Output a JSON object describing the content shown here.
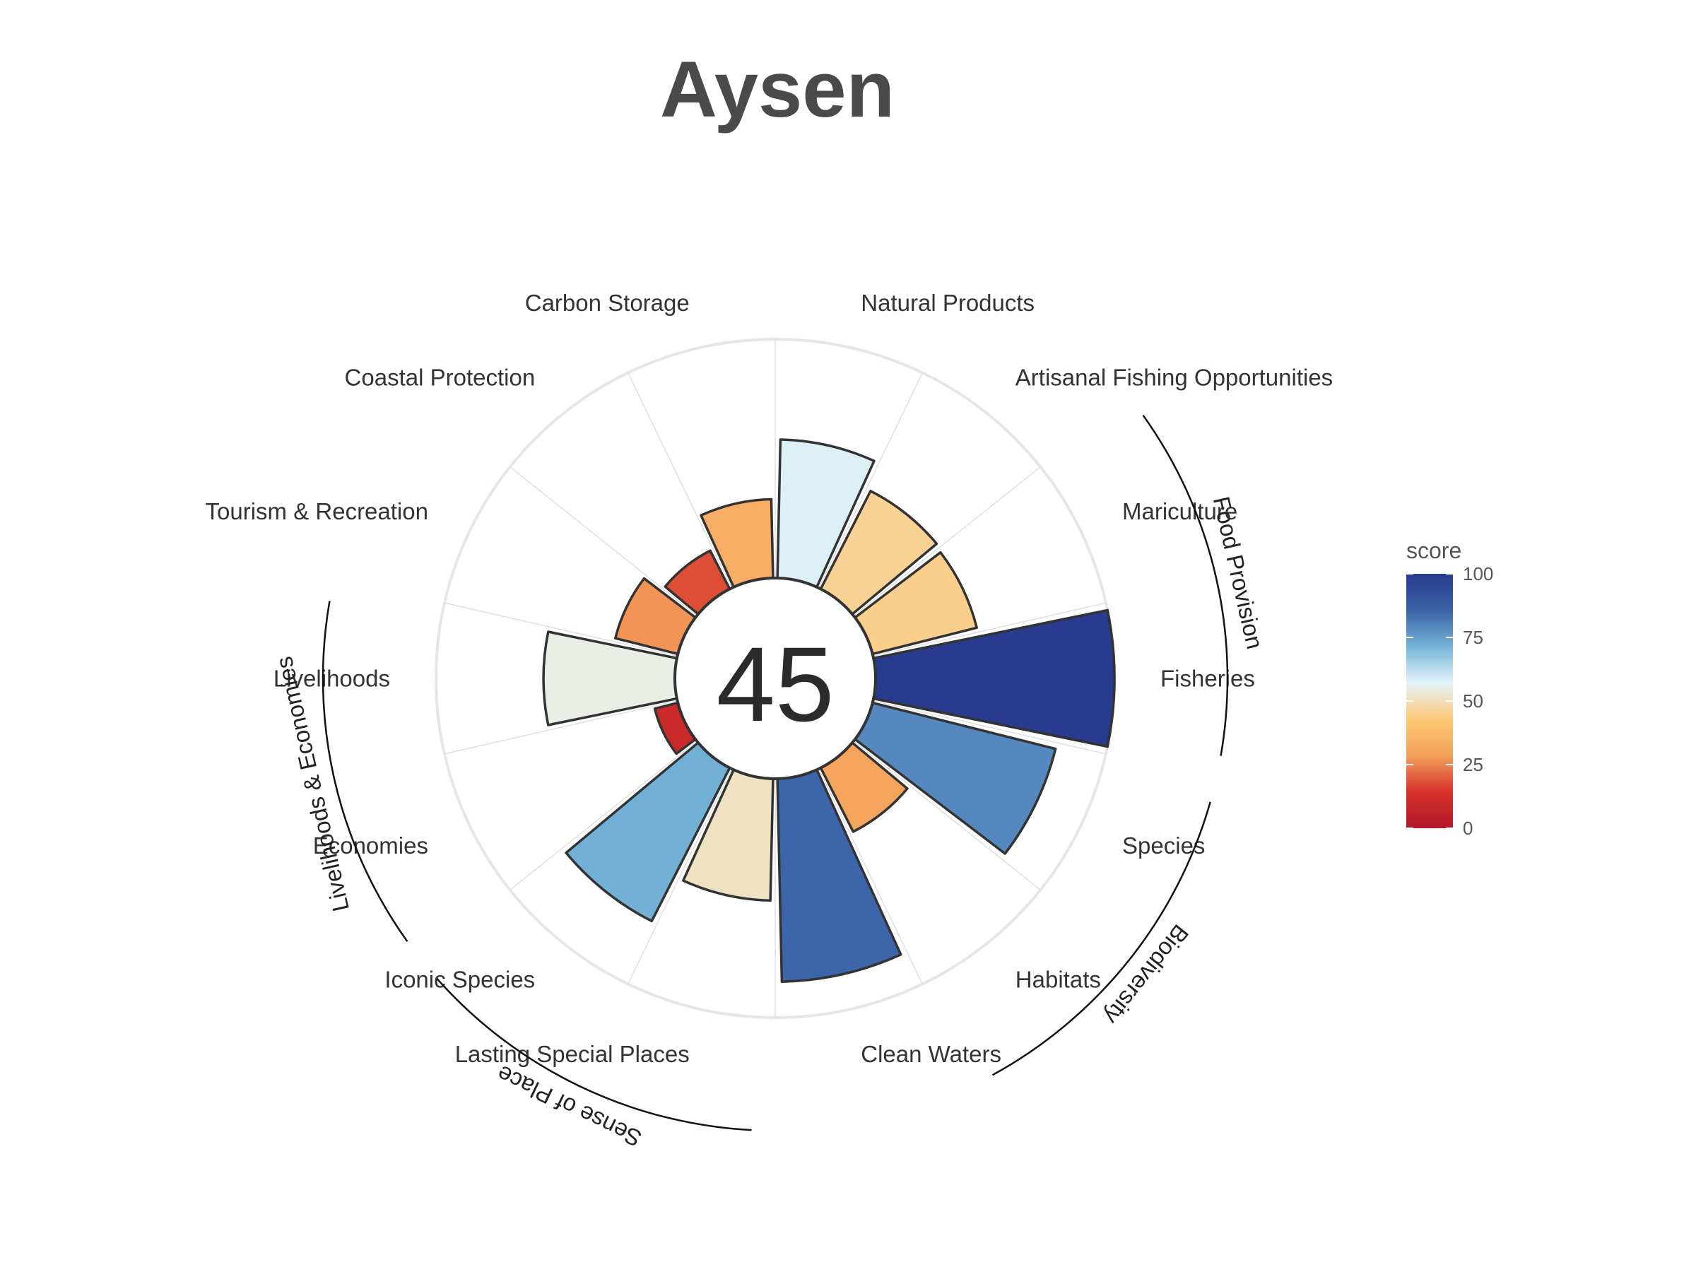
{
  "chart_data": {
    "type": "flower",
    "title": "Aysen",
    "center_value": "45",
    "petals": [
      {
        "label": "Fisheries",
        "value": 100
      },
      {
        "label": "Mariculture",
        "value": 45
      },
      {
        "label": "Artisanal Fishing Opportunities",
        "value": 46
      },
      {
        "label": "Natural Products",
        "value": 58
      },
      {
        "label": "Carbon Storage",
        "value": 33
      },
      {
        "label": "Coastal Protection",
        "value": 18
      },
      {
        "label": "Tourism & Recreation",
        "value": 27
      },
      {
        "label": "Livelihoods",
        "value": 55
      },
      {
        "label": "Economies",
        "value": 10
      },
      {
        "label": "Iconic Species",
        "value": 72
      },
      {
        "label": "Lasting Special Places",
        "value": 51
      },
      {
        "label": "Clean Waters",
        "value": 85
      },
      {
        "label": "Habitats",
        "value": 30
      },
      {
        "label": "Species",
        "value": 79
      }
    ],
    "groups": [
      {
        "label": "Food Provision",
        "members": [
          "Fisheries",
          "Mariculture"
        ]
      },
      {
        "label": "Biodiversity",
        "members": [
          "Species",
          "Habitats"
        ]
      },
      {
        "label": "Sense of Place",
        "members": [
          "Iconic Species",
          "Lasting Special Places"
        ]
      },
      {
        "label": "Livelihoods & Economies",
        "members": [
          "Livelihoods",
          "Economies"
        ]
      }
    ],
    "range": [
      0,
      100
    ],
    "legend": {
      "title": "score",
      "ticks": [
        "0",
        "25",
        "50",
        "75",
        "100"
      ],
      "placement": "right",
      "colors": [
        "#b2182b",
        "#d6312a",
        "#f4a05a",
        "#fdc977",
        "#e4f4fa",
        "#74b3d8",
        "#3a62a8",
        "#283b8e"
      ]
    },
    "colors": {
      "outline": "#333333",
      "grid": "#e0e0e0",
      "circle": "#e6e6e6"
    }
  }
}
